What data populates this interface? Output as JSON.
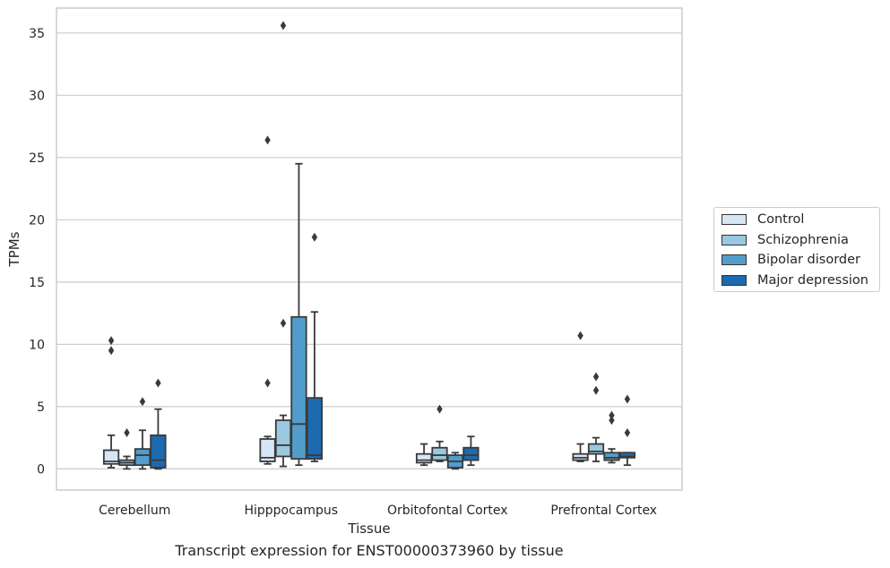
{
  "chart_data": {
    "type": "box",
    "title": "Transcript expression for ENST00000373960 by tissue",
    "xlabel": "Tissue",
    "ylabel": "TPMs",
    "ylim": [
      -1.7,
      37
    ],
    "yticks": [
      0,
      5,
      10,
      15,
      20,
      25,
      30,
      35
    ],
    "grid": "horizontal",
    "legend_position": "right",
    "categories": [
      "Cerebellum",
      "Hipppocampus",
      "Orbitofontal Cortex",
      "Prefrontal Cortex"
    ],
    "series": [
      {
        "name": "Control",
        "color": "#d6e6f4",
        "boxes": [
          {
            "whislo": 0.1,
            "q1": 0.4,
            "med": 0.6,
            "q3": 1.5,
            "whishi": 2.7,
            "fliers": [
              9.5,
              10.3
            ]
          },
          {
            "whislo": 0.4,
            "q1": 0.6,
            "med": 0.9,
            "q3": 2.4,
            "whishi": 2.6,
            "fliers": [
              6.9,
              26.4
            ]
          },
          {
            "whislo": 0.3,
            "q1": 0.5,
            "med": 0.7,
            "q3": 1.2,
            "whishi": 2.0,
            "fliers": []
          },
          {
            "whislo": 0.6,
            "q1": 0.7,
            "med": 0.9,
            "q3": 1.2,
            "whishi": 2.0,
            "fliers": [
              10.7
            ]
          }
        ]
      },
      {
        "name": "Schizophrenia",
        "color": "#9ac8e0",
        "boxes": [
          {
            "whislo": 0.0,
            "q1": 0.3,
            "med": 0.5,
            "q3": 0.7,
            "whishi": 1.0,
            "fliers": [
              2.9
            ]
          },
          {
            "whislo": 0.2,
            "q1": 1.0,
            "med": 1.9,
            "q3": 3.9,
            "whishi": 4.3,
            "fliers": [
              11.7,
              35.6
            ]
          },
          {
            "whislo": 0.6,
            "q1": 0.7,
            "med": 1.1,
            "q3": 1.7,
            "whishi": 2.2,
            "fliers": [
              4.8
            ]
          },
          {
            "whislo": 0.6,
            "q1": 1.2,
            "med": 1.4,
            "q3": 2.0,
            "whishi": 2.5,
            "fliers": [
              6.3,
              7.4
            ]
          }
        ]
      },
      {
        "name": "Bipolar disorder",
        "color": "#529dcc",
        "boxes": [
          {
            "whislo": 0.0,
            "q1": 0.3,
            "med": 1.1,
            "q3": 1.6,
            "whishi": 3.1,
            "fliers": [
              5.4
            ]
          },
          {
            "whislo": 0.3,
            "q1": 0.8,
            "med": 3.6,
            "q3": 12.2,
            "whishi": 24.5,
            "fliers": []
          },
          {
            "whislo": 0.0,
            "q1": 0.1,
            "med": 0.6,
            "q3": 1.1,
            "whishi": 1.3,
            "fliers": []
          },
          {
            "whislo": 0.5,
            "q1": 0.7,
            "med": 0.9,
            "q3": 1.3,
            "whishi": 1.6,
            "fliers": [
              3.9,
              4.3
            ]
          }
        ]
      },
      {
        "name": "Major depression",
        "color": "#1c6aaf",
        "boxes": [
          {
            "whislo": 0.0,
            "q1": 0.1,
            "med": 0.7,
            "q3": 2.7,
            "whishi": 4.8,
            "fliers": [
              6.9
            ]
          },
          {
            "whislo": 0.6,
            "q1": 0.8,
            "med": 1.1,
            "q3": 5.7,
            "whishi": 12.6,
            "fliers": [
              18.6
            ]
          },
          {
            "whislo": 0.3,
            "q1": 0.7,
            "med": 1.1,
            "q3": 1.7,
            "whishi": 2.6,
            "fliers": []
          },
          {
            "whislo": 0.3,
            "q1": 0.9,
            "med": 1.0,
            "q3": 1.3,
            "whishi": 1.3,
            "fliers": [
              2.9,
              5.6
            ]
          }
        ]
      }
    ]
  }
}
